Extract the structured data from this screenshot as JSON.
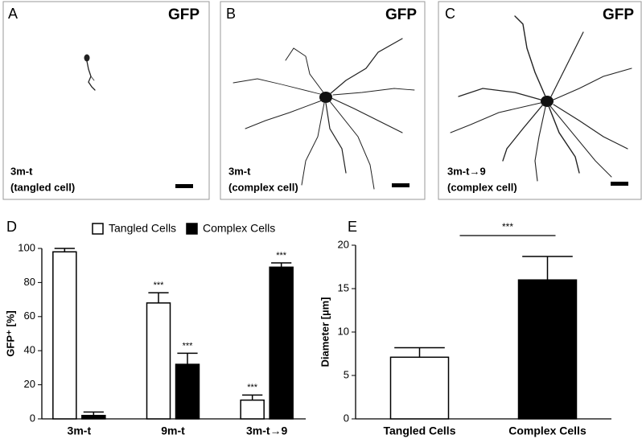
{
  "panels": [
    {
      "letter": "A",
      "marker": "GFP",
      "caption": [
        "3m-t",
        "(tangled cell)"
      ]
    },
    {
      "letter": "B",
      "marker": "GFP",
      "caption": [
        "3m-t",
        "(complex cell)"
      ]
    },
    {
      "letter": "C",
      "marker": "GFP",
      "caption": [
        "3m-t→9",
        "(complex cell)"
      ]
    }
  ],
  "chart_data": [
    {
      "type": "bar",
      "panel_label": "D",
      "ylabel": "GFP⁺ [%]",
      "categories": [
        "3m-t",
        "9m-t",
        "3m-t→9"
      ],
      "series": [
        {
          "name": "Tangled Cells",
          "color": "#ffffff",
          "values": [
            98,
            68,
            11
          ],
          "errors": [
            2,
            6,
            3
          ],
          "significance": [
            null,
            "***",
            "***"
          ]
        },
        {
          "name": "Complex Cells",
          "color": "#000000",
          "values": [
            2,
            32,
            89
          ],
          "errors": [
            2,
            6.5,
            2.5
          ],
          "significance": [
            null,
            "***",
            "***"
          ]
        }
      ],
      "ylim": [
        0,
        100
      ],
      "yticks": [
        0,
        20,
        40,
        60,
        80,
        100
      ],
      "legend": "top"
    },
    {
      "type": "bar",
      "panel_label": "E",
      "ylabel": "Diameter [µm]",
      "categories": [
        "Tangled Cells",
        "Complex Cells"
      ],
      "values": [
        7.1,
        16
      ],
      "errors": [
        1.1,
        2.7
      ],
      "colors": [
        "#ffffff",
        "#000000"
      ],
      "significance": "***",
      "ylim": [
        0,
        20
      ],
      "yticks": [
        0,
        5,
        10,
        15,
        20
      ]
    }
  ]
}
